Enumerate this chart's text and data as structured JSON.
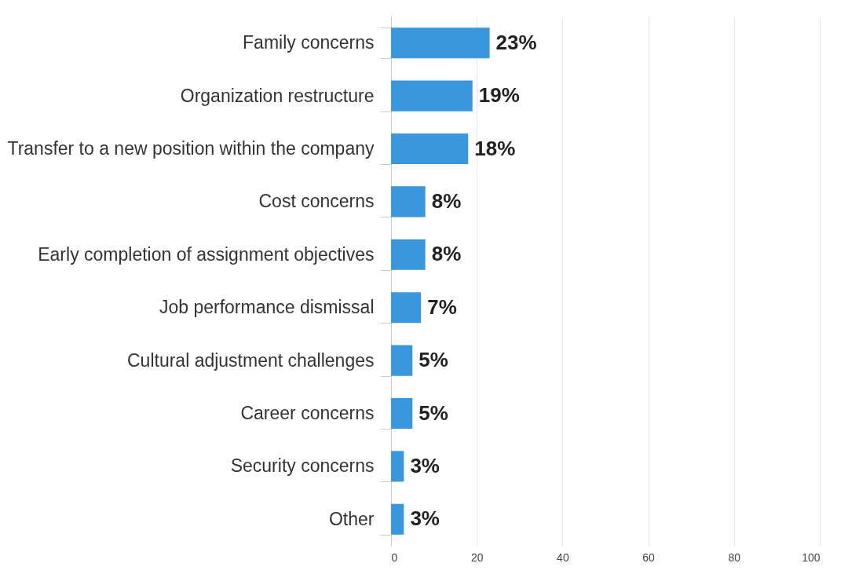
{
  "chart_data": {
    "type": "bar",
    "orientation": "horizontal",
    "categories": [
      "Family concerns",
      "Organization restructure",
      "Transfer to a new position within the company",
      "Cost concerns",
      "Early completion of assignment objectives",
      "Job performance dismissal",
      "Cultural adjustment challenges",
      "Career concerns",
      "Security concerns",
      "Other"
    ],
    "values": [
      23,
      19,
      18,
      8,
      8,
      7,
      5,
      5,
      3,
      3
    ],
    "value_labels": [
      "23%",
      "19%",
      "18%",
      "8%",
      "8%",
      "7%",
      "5%",
      "5%",
      "3%",
      "3%"
    ],
    "color": "#3a96dd",
    "xlim": [
      0,
      100
    ],
    "xticks": [
      0,
      20,
      40,
      60,
      80,
      100
    ],
    "grid": "x"
  }
}
